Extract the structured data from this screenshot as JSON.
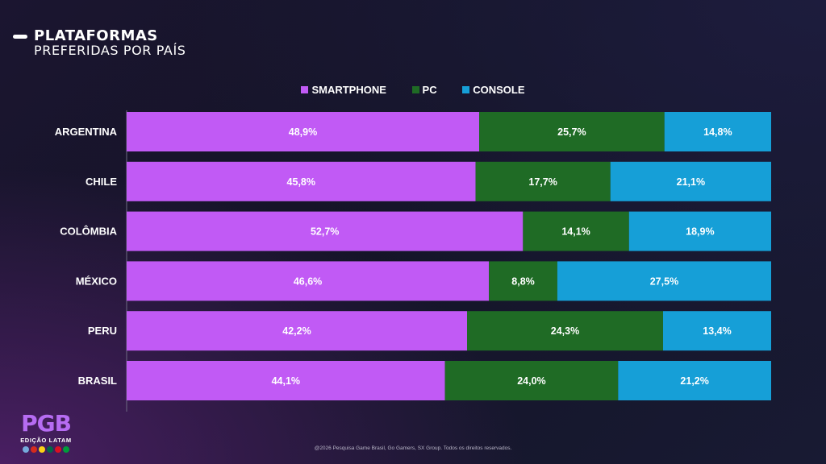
{
  "header": {
    "title_line1": "PLATAFORMAS",
    "title_line2": "PREFERIDAS POR PAÍS"
  },
  "legend": [
    {
      "label": "SMARTPHONE",
      "color": "#c15af5"
    },
    {
      "label": "PC",
      "color": "#1f6b25"
    },
    {
      "label": "CONSOLE",
      "color": "#169fd7"
    }
  ],
  "chart_data": {
    "type": "bar",
    "orientation": "horizontal",
    "stacked": true,
    "categories": [
      "ARGENTINA",
      "CHILE",
      "COLÔMBIA",
      "MÉXICO",
      "PERU",
      "BRASIL"
    ],
    "series": [
      {
        "name": "SMARTPHONE",
        "color": "#c15af5",
        "values": [
          48.9,
          45.8,
          52.7,
          46.6,
          42.2,
          44.1
        ],
        "labels": [
          "48,9%",
          "45,8%",
          "52,7%",
          "46,6%",
          "42,2%",
          "44,1%"
        ]
      },
      {
        "name": "PC",
        "color": "#1f6b25",
        "values": [
          25.7,
          17.7,
          14.1,
          8.8,
          24.3,
          24.0
        ],
        "labels": [
          "25,7%",
          "17,7%",
          "14,1%",
          "8,8%",
          "24,3%",
          "24,0%"
        ]
      },
      {
        "name": "CONSOLE",
        "color": "#169fd7",
        "values": [
          14.8,
          21.1,
          18.9,
          27.5,
          13.4,
          21.2
        ],
        "labels": [
          "14,8%",
          "21,1%",
          "18,9%",
          "27,5%",
          "13,4%",
          "21,2%"
        ]
      }
    ],
    "title": "PLATAFORMAS PREFERIDAS POR PAÍS",
    "legend_position": "top-center",
    "grid": false
  },
  "logo": {
    "mark": "PGB",
    "subtitle": "EDIÇÃO LATAM",
    "flag_colors": [
      "#75aadb",
      "#d52b1e",
      "#fcd116",
      "#006847",
      "#d91023",
      "#009c3b"
    ]
  },
  "footer": {
    "text": "@2026 Pesquisa Game Brasil, Go Gamers, SX Group. Todos os direitos reservados."
  }
}
